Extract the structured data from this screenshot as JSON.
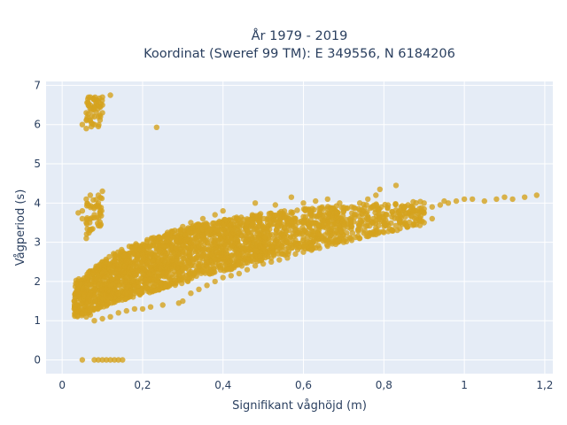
{
  "chart_data": {
    "type": "scatter",
    "title_lines": [
      "År 1979 - 2019",
      "Koordinat (Sweref 99 TM): E 349556, N 6184206"
    ],
    "xlabel": "Signifikant våghöjd (m)",
    "ylabel": "Vågperiod (s)",
    "xlim": [
      -0.04,
      1.22
    ],
    "ylim": [
      -0.35,
      7.1
    ],
    "x_ticks": [
      0,
      0.2,
      0.4,
      0.6,
      0.8,
      1,
      1.2
    ],
    "x_tick_labels": [
      "0",
      "0,2",
      "0,4",
      "0,6",
      "0,8",
      "1",
      "1,2"
    ],
    "y_ticks": [
      0,
      1,
      2,
      3,
      4,
      5,
      6,
      7
    ],
    "y_tick_labels": [
      "0",
      "1",
      "2",
      "3",
      "4",
      "5",
      "6",
      "7"
    ],
    "grid": true,
    "marker_color": "#d4a21e",
    "background": "#e5ecf6",
    "series": [
      {
        "points": [
          [
            0.05,
            0.0
          ],
          [
            0.08,
            0.0
          ],
          [
            0.09,
            0.0
          ],
          [
            0.1,
            0.0
          ],
          [
            0.11,
            0.0
          ],
          [
            0.12,
            0.0
          ],
          [
            0.13,
            0.0
          ],
          [
            0.14,
            0.0
          ],
          [
            0.15,
            0.0
          ],
          [
            0.08,
            6.4
          ],
          [
            0.09,
            6.6
          ],
          [
            0.1,
            6.7
          ],
          [
            0.06,
            6.3
          ],
          [
            0.07,
            6.1
          ],
          [
            0.08,
            6.0
          ],
          [
            0.09,
            6.2
          ],
          [
            0.1,
            6.3
          ],
          [
            0.07,
            6.5
          ],
          [
            0.12,
            6.75
          ],
          [
            0.06,
            5.9
          ],
          [
            0.08,
            6.2
          ],
          [
            0.09,
            5.95
          ],
          [
            0.05,
            6.0
          ],
          [
            0.07,
            6.7
          ],
          [
            0.1,
            6.5
          ],
          [
            0.235,
            5.93
          ],
          [
            0.05,
            3.8
          ],
          [
            0.06,
            4.1
          ],
          [
            0.07,
            4.2
          ],
          [
            0.08,
            3.9
          ],
          [
            0.09,
            4.0
          ],
          [
            0.1,
            4.3
          ],
          [
            0.05,
            3.6
          ],
          [
            0.06,
            3.5
          ],
          [
            0.07,
            3.3
          ],
          [
            0.08,
            3.7
          ],
          [
            0.09,
            3.9
          ],
          [
            0.06,
            3.1
          ],
          [
            0.04,
            3.75
          ],
          [
            0.09,
            4.2
          ],
          [
            0.03,
            1.5
          ],
          [
            0.03,
            1.3
          ],
          [
            0.04,
            1.7
          ],
          [
            0.05,
            1.2
          ],
          [
            0.06,
            1.1
          ],
          [
            0.07,
            1.15
          ],
          [
            0.08,
            1.0
          ],
          [
            0.1,
            1.05
          ],
          [
            0.12,
            1.1
          ],
          [
            0.14,
            1.2
          ],
          [
            0.16,
            1.25
          ],
          [
            0.18,
            1.3
          ],
          [
            0.22,
            1.35
          ],
          [
            0.25,
            1.4
          ],
          [
            0.29,
            1.45
          ],
          [
            0.2,
            1.3
          ],
          [
            0.08,
            2.0
          ],
          [
            0.1,
            2.2
          ],
          [
            0.12,
            2.4
          ],
          [
            0.14,
            2.6
          ],
          [
            0.16,
            2.5
          ],
          [
            0.18,
            2.7
          ],
          [
            0.2,
            2.8
          ],
          [
            0.22,
            2.9
          ],
          [
            0.24,
            3.1
          ],
          [
            0.26,
            3.2
          ],
          [
            0.28,
            3.3
          ],
          [
            0.3,
            3.4
          ],
          [
            0.32,
            3.5
          ],
          [
            0.35,
            3.6
          ],
          [
            0.38,
            3.7
          ],
          [
            0.4,
            3.8
          ],
          [
            0.1,
            1.8
          ],
          [
            0.12,
            1.9
          ],
          [
            0.14,
            2.0
          ],
          [
            0.16,
            2.1
          ],
          [
            0.18,
            2.2
          ],
          [
            0.2,
            2.3
          ],
          [
            0.22,
            2.4
          ],
          [
            0.24,
            2.5
          ],
          [
            0.26,
            2.6
          ],
          [
            0.28,
            2.7
          ],
          [
            0.3,
            2.75
          ],
          [
            0.32,
            2.85
          ],
          [
            0.34,
            2.9
          ],
          [
            0.36,
            3.0
          ],
          [
            0.38,
            3.05
          ],
          [
            0.4,
            3.1
          ],
          [
            0.42,
            3.2
          ],
          [
            0.44,
            3.25
          ],
          [
            0.46,
            3.3
          ],
          [
            0.48,
            3.35
          ],
          [
            0.5,
            3.4
          ],
          [
            0.52,
            3.45
          ],
          [
            0.54,
            3.5
          ],
          [
            0.56,
            3.55
          ],
          [
            0.58,
            3.6
          ],
          [
            0.6,
            3.65
          ],
          [
            0.62,
            3.7
          ],
          [
            0.64,
            3.72
          ],
          [
            0.66,
            3.75
          ],
          [
            0.68,
            3.78
          ],
          [
            0.7,
            3.8
          ],
          [
            0.12,
            1.6
          ],
          [
            0.14,
            1.7
          ],
          [
            0.16,
            1.8
          ],
          [
            0.18,
            1.9
          ],
          [
            0.2,
            2.0
          ],
          [
            0.22,
            2.05
          ],
          [
            0.24,
            2.1
          ],
          [
            0.26,
            2.2
          ],
          [
            0.28,
            2.25
          ],
          [
            0.3,
            2.3
          ],
          [
            0.32,
            2.4
          ],
          [
            0.34,
            2.45
          ],
          [
            0.36,
            2.5
          ],
          [
            0.38,
            2.55
          ],
          [
            0.4,
            2.6
          ],
          [
            0.42,
            2.65
          ],
          [
            0.44,
            2.7
          ],
          [
            0.46,
            2.75
          ],
          [
            0.48,
            2.8
          ],
          [
            0.5,
            2.85
          ],
          [
            0.52,
            2.9
          ],
          [
            0.54,
            2.95
          ],
          [
            0.56,
            3.0
          ],
          [
            0.58,
            3.05
          ],
          [
            0.6,
            3.1
          ],
          [
            0.62,
            3.15
          ],
          [
            0.64,
            3.2
          ],
          [
            0.66,
            3.25
          ],
          [
            0.68,
            3.3
          ],
          [
            0.7,
            3.35
          ],
          [
            0.72,
            3.4
          ],
          [
            0.74,
            3.45
          ],
          [
            0.76,
            3.5
          ],
          [
            0.78,
            3.55
          ],
          [
            0.8,
            3.6
          ],
          [
            0.82,
            3.65
          ],
          [
            0.84,
            3.7
          ],
          [
            0.86,
            3.75
          ],
          [
            0.88,
            3.8
          ],
          [
            0.9,
            3.85
          ],
          [
            0.92,
            3.9
          ],
          [
            0.94,
            3.95
          ],
          [
            0.96,
            4.0
          ],
          [
            0.98,
            4.05
          ],
          [
            1.0,
            4.1
          ],
          [
            0.72,
            3.9
          ],
          [
            0.74,
            4.0
          ],
          [
            0.76,
            4.1
          ],
          [
            0.78,
            4.2
          ],
          [
            0.83,
            4.45
          ],
          [
            0.79,
            4.35
          ],
          [
            0.69,
            4.0
          ],
          [
            0.66,
            4.1
          ],
          [
            0.63,
            4.05
          ],
          [
            0.6,
            4.0
          ],
          [
            0.57,
            4.15
          ],
          [
            0.53,
            3.95
          ],
          [
            0.48,
            4.0
          ],
          [
            0.86,
            3.95
          ],
          [
            0.9,
            4.0
          ],
          [
            0.95,
            4.05
          ],
          [
            1.02,
            4.1
          ],
          [
            1.05,
            4.05
          ],
          [
            1.08,
            4.1
          ],
          [
            1.1,
            4.15
          ],
          [
            1.12,
            4.1
          ],
          [
            1.15,
            4.15
          ],
          [
            1.18,
            4.2
          ],
          [
            0.92,
            3.6
          ],
          [
            0.88,
            3.55
          ],
          [
            0.84,
            3.5
          ],
          [
            0.8,
            3.5
          ],
          [
            0.3,
            1.5
          ],
          [
            0.32,
            1.7
          ],
          [
            0.34,
            1.8
          ],
          [
            0.36,
            1.9
          ],
          [
            0.38,
            2.0
          ],
          [
            0.4,
            2.1
          ],
          [
            0.42,
            2.15
          ],
          [
            0.44,
            2.2
          ],
          [
            0.46,
            2.3
          ],
          [
            0.48,
            2.4
          ],
          [
            0.5,
            2.45
          ],
          [
            0.52,
            2.5
          ],
          [
            0.54,
            2.55
          ],
          [
            0.56,
            2.6
          ],
          [
            0.58,
            2.7
          ],
          [
            0.6,
            2.75
          ],
          [
            0.62,
            2.8
          ],
          [
            0.64,
            2.85
          ],
          [
            0.66,
            2.9
          ],
          [
            0.68,
            2.95
          ],
          [
            0.7,
            3.0
          ],
          [
            0.72,
            3.05
          ],
          [
            0.74,
            3.1
          ],
          [
            0.76,
            3.15
          ],
          [
            0.78,
            3.2
          ],
          [
            0.8,
            3.25
          ],
          [
            0.82,
            3.3
          ],
          [
            0.84,
            3.35
          ],
          [
            0.86,
            3.4
          ],
          [
            0.88,
            3.45
          ],
          [
            0.9,
            3.5
          ]
        ]
      }
    ],
    "dense_bands": [
      {
        "x_from": 0.03,
        "x_to": 0.14,
        "y_lo_from": 1.05,
        "y_lo_to": 1.5,
        "y_hi_from": 2.0,
        "y_hi_to": 2.8,
        "count": 420
      },
      {
        "x_from": 0.14,
        "x_to": 0.3,
        "y_lo_from": 1.5,
        "y_lo_to": 1.95,
        "y_hi_from": 2.8,
        "y_hi_to": 3.4,
        "count": 650
      },
      {
        "x_from": 0.3,
        "x_to": 0.5,
        "y_lo_from": 1.95,
        "y_lo_to": 2.55,
        "y_hi_from": 3.4,
        "y_hi_to": 3.75,
        "count": 620
      },
      {
        "x_from": 0.5,
        "x_to": 0.7,
        "y_lo_from": 2.55,
        "y_lo_to": 3.0,
        "y_hi_from": 3.75,
        "y_hi_to": 3.95,
        "count": 420
      },
      {
        "x_from": 0.7,
        "x_to": 0.9,
        "y_lo_from": 3.0,
        "y_lo_to": 3.45,
        "y_hi_from": 3.95,
        "y_hi_to": 4.05,
        "count": 200
      },
      {
        "x_from": 0.06,
        "x_to": 0.1,
        "y_lo_from": 3.2,
        "y_lo_to": 3.4,
        "y_hi_from": 4.1,
        "y_hi_to": 4.2,
        "count": 40
      },
      {
        "x_from": 0.06,
        "x_to": 0.1,
        "y_lo_from": 5.9,
        "y_lo_to": 6.0,
        "y_hi_from": 6.7,
        "y_hi_to": 6.7,
        "count": 40
      }
    ]
  }
}
